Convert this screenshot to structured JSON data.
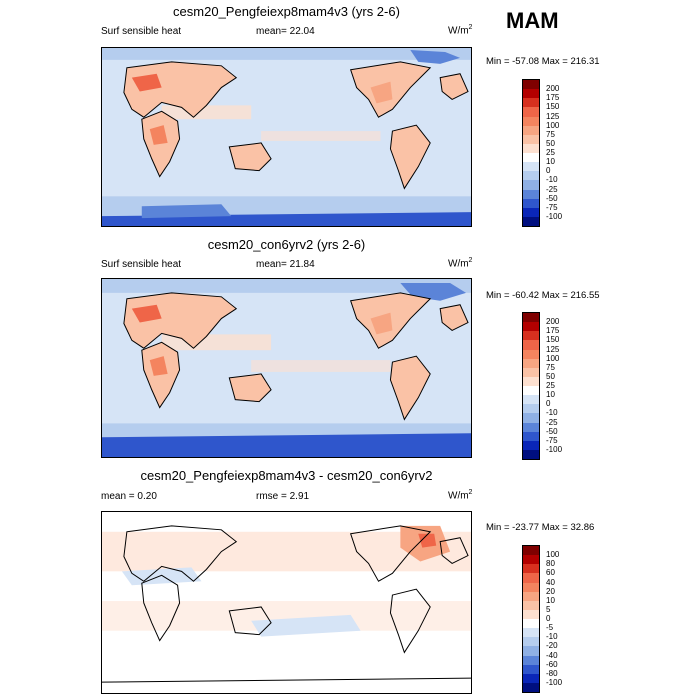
{
  "season": "MAM",
  "panels": [
    {
      "title": "cesm20_Pengfeiexp8mam4v3 (yrs 2-6)",
      "left_label": "Surf sensible heat",
      "center_label": "mean=  22.04",
      "units": "W/m",
      "units_sup": "2",
      "minmax": "Min = -57.08 Max = 216.31",
      "colorbar": {
        "labels": [
          "200",
          "175",
          "150",
          "125",
          "100",
          "75",
          "50",
          "25",
          "10",
          "0",
          "-10",
          "-25",
          "-50",
          "-75",
          "-100"
        ],
        "colors": [
          "#7f0000",
          "#b30000",
          "#d7301f",
          "#ef6548",
          "#f4845f",
          "#f7a582",
          "#fac2a6",
          "#fde0d0",
          "#ffffff",
          "#d6e4f6",
          "#b5cdee",
          "#8fb0e4",
          "#5b84d8",
          "#2f56cc",
          "#0a26b8",
          "#000f80"
        ]
      }
    },
    {
      "title": "cesm20_con6yrv2 (yrs 2-6)",
      "left_label": "Surf sensible heat",
      "center_label": "mean=  21.84",
      "units": "W/m",
      "units_sup": "2",
      "minmax": "Min = -60.42 Max = 216.55",
      "colorbar": {
        "labels": [
          "200",
          "175",
          "150",
          "125",
          "100",
          "75",
          "50",
          "25",
          "10",
          "0",
          "-10",
          "-25",
          "-50",
          "-75",
          "-100"
        ],
        "colors": [
          "#7f0000",
          "#b30000",
          "#d7301f",
          "#ef6548",
          "#f4845f",
          "#f7a582",
          "#fac2a6",
          "#fde0d0",
          "#ffffff",
          "#d6e4f6",
          "#b5cdee",
          "#8fb0e4",
          "#5b84d8",
          "#2f56cc",
          "#0a26b8",
          "#000f80"
        ]
      }
    },
    {
      "title": "cesm20_Pengfeiexp8mam4v3 - cesm20_con6yrv2",
      "left_label": "mean =   0.20",
      "center_label": "rmse =   2.91",
      "units": "W/m",
      "units_sup": "2",
      "minmax": "Min = -23.77 Max =  32.86",
      "colorbar": {
        "labels": [
          "100",
          "80",
          "60",
          "40",
          "20",
          "10",
          "5",
          "0",
          "-5",
          "-10",
          "-20",
          "-40",
          "-60",
          "-80",
          "-100"
        ],
        "colors": [
          "#7f0000",
          "#b30000",
          "#d7301f",
          "#ef6548",
          "#f4845f",
          "#f7a582",
          "#fac2a6",
          "#fde0d0",
          "#ffffff",
          "#d6e4f6",
          "#b5cdee",
          "#8fb0e4",
          "#5b84d8",
          "#2f56cc",
          "#0a26b8",
          "#000f80"
        ]
      }
    }
  ]
}
